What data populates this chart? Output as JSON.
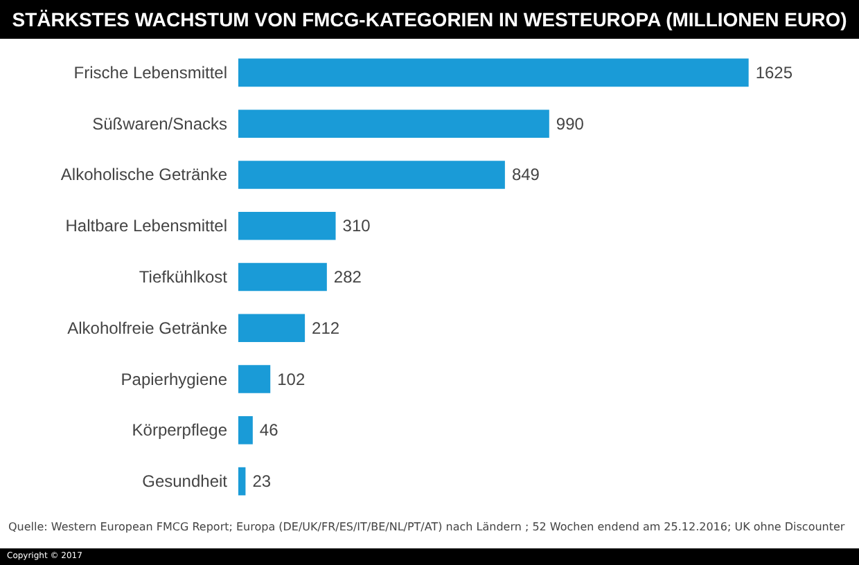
{
  "chart_data": {
    "type": "bar",
    "orientation": "horizontal",
    "title": "STÄRKSTES WACHSTUM VON FMCG-KATEGORIEN IN WESTEUROPA (MILLIONEN EURO)",
    "categories": [
      "Frische Lebensmittel",
      "Süßwaren/Snacks",
      "Alkoholische Getränke",
      "Haltbare Lebensmittel",
      "Tiefkühlkost",
      "Alkoholfreie Getränke",
      "Papierhygiene",
      "Körperpflege",
      "Gesundheit"
    ],
    "values": [
      1625,
      990,
      849,
      310,
      282,
      212,
      102,
      46,
      23
    ],
    "color": "#1a9bd7",
    "data_labels": true,
    "annotations": [
      "Quelle: Western European FMCG Report; Europa (DE/UK/FR/ES/IT/BE/NL/PT/AT) nach Ländern ; 52 Wochen endend am 25.12.2016; UK ohne Discounter",
      "Copyright © 2017"
    ]
  }
}
